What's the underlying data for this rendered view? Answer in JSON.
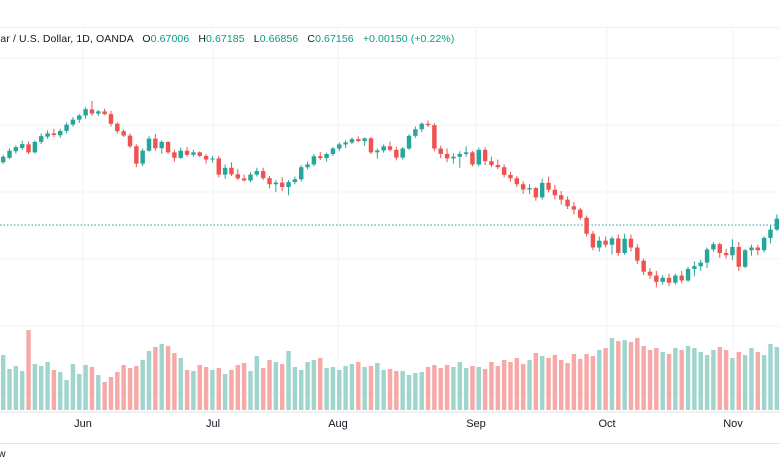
{
  "legend": {
    "symbol": "lar / U.S. Dollar, 1D, OANDA",
    "open_label": "O",
    "open": "0.67006",
    "high_label": "H",
    "high": "0.67185",
    "low_label": "L",
    "low": "0.66856",
    "close_label": "C",
    "close": "0.67156",
    "change": "+0.00150 (+0.22%)"
  },
  "footer": {
    "label": "w"
  },
  "colors": {
    "up": "#26a69a",
    "down": "#ef5350",
    "up_volume": "#9fd5cd",
    "down_volume": "#f7a9a7",
    "grid": "#f0f3fa",
    "price_line": "#26a69a"
  },
  "chart_data": {
    "type": "candlestick",
    "x_tick_labels": [
      "Jun",
      "Jul",
      "Aug",
      "Sep",
      "Oct",
      "Nov"
    ],
    "grid": true,
    "last_price_line": true,
    "candles_ohlc_scaled": [
      [
        0.61,
        0.637,
        0.604,
        0.63
      ],
      [
        0.626,
        0.66,
        0.622,
        0.652
      ],
      [
        0.65,
        0.672,
        0.641,
        0.665
      ],
      [
        0.662,
        0.688,
        0.655,
        0.676
      ],
      [
        0.675,
        0.686,
        0.64,
        0.646
      ],
      [
        0.646,
        0.69,
        0.641,
        0.684
      ],
      [
        0.684,
        0.715,
        0.676,
        0.705
      ],
      [
        0.703,
        0.726,
        0.695,
        0.715
      ],
      [
        0.715,
        0.732,
        0.702,
        0.709
      ],
      [
        0.708,
        0.731,
        0.698,
        0.724
      ],
      [
        0.724,
        0.755,
        0.715,
        0.747
      ],
      [
        0.747,
        0.774,
        0.74,
        0.765
      ],
      [
        0.765,
        0.785,
        0.753,
        0.78
      ],
      [
        0.78,
        0.81,
        0.768,
        0.803
      ],
      [
        0.802,
        0.833,
        0.778,
        0.787
      ],
      [
        0.787,
        0.8,
        0.778,
        0.795
      ],
      [
        0.795,
        0.805,
        0.781,
        0.785
      ],
      [
        0.785,
        0.797,
        0.74,
        0.75
      ],
      [
        0.75,
        0.756,
        0.715,
        0.723
      ],
      [
        0.723,
        0.73,
        0.702,
        0.707
      ],
      [
        0.707,
        0.715,
        0.662,
        0.668
      ],
      [
        0.668,
        0.675,
        0.592,
        0.605
      ],
      [
        0.605,
        0.66,
        0.596,
        0.652
      ],
      [
        0.652,
        0.705,
        0.648,
        0.696
      ],
      [
        0.696,
        0.713,
        0.652,
        0.661
      ],
      [
        0.661,
        0.69,
        0.641,
        0.684
      ],
      [
        0.684,
        0.686,
        0.64,
        0.646
      ],
      [
        0.646,
        0.656,
        0.612,
        0.626
      ],
      [
        0.626,
        0.663,
        0.622,
        0.652
      ],
      [
        0.652,
        0.665,
        0.63,
        0.637
      ],
      [
        0.637,
        0.655,
        0.63,
        0.646
      ],
      [
        0.646,
        0.65,
        0.628,
        0.633
      ],
      [
        0.633,
        0.64,
        0.605,
        0.62
      ],
      [
        0.62,
        0.633,
        0.608,
        0.624
      ],
      [
        0.624,
        0.632,
        0.555,
        0.565
      ],
      [
        0.565,
        0.602,
        0.55,
        0.59
      ],
      [
        0.59,
        0.61,
        0.56,
        0.566
      ],
      [
        0.566,
        0.585,
        0.545,
        0.551
      ],
      [
        0.551,
        0.565,
        0.54,
        0.544
      ],
      [
        0.544,
        0.573,
        0.538,
        0.565
      ],
      [
        0.565,
        0.59,
        0.558,
        0.578
      ],
      [
        0.578,
        0.59,
        0.545,
        0.552
      ],
      [
        0.552,
        0.56,
        0.515,
        0.53
      ],
      [
        0.53,
        0.545,
        0.502,
        0.536
      ],
      [
        0.536,
        0.556,
        0.505,
        0.52
      ],
      [
        0.52,
        0.545,
        0.49,
        0.538
      ],
      [
        0.538,
        0.558,
        0.53,
        0.548
      ],
      [
        0.548,
        0.6,
        0.54,
        0.592
      ],
      [
        0.592,
        0.612,
        0.584,
        0.602
      ],
      [
        0.602,
        0.64,
        0.595,
        0.632
      ],
      [
        0.632,
        0.648,
        0.618,
        0.625
      ],
      [
        0.625,
        0.645,
        0.612,
        0.64
      ],
      [
        0.64,
        0.665,
        0.633,
        0.66
      ],
      [
        0.66,
        0.682,
        0.65,
        0.675
      ],
      [
        0.675,
        0.69,
        0.662,
        0.682
      ],
      [
        0.682,
        0.7,
        0.676,
        0.694
      ],
      [
        0.694,
        0.704,
        0.684,
        0.687
      ],
      [
        0.687,
        0.7,
        0.67,
        0.697
      ],
      [
        0.697,
        0.702,
        0.64,
        0.646
      ],
      [
        0.646,
        0.66,
        0.623,
        0.653
      ],
      [
        0.653,
        0.675,
        0.645,
        0.668
      ],
      [
        0.668,
        0.685,
        0.65,
        0.655
      ],
      [
        0.655,
        0.666,
        0.617,
        0.627
      ],
      [
        0.627,
        0.665,
        0.62,
        0.66
      ],
      [
        0.66,
        0.712,
        0.655,
        0.706
      ],
      [
        0.706,
        0.74,
        0.698,
        0.73
      ],
      [
        0.73,
        0.755,
        0.72,
        0.75
      ],
      [
        0.75,
        0.762,
        0.738,
        0.745
      ],
      [
        0.745,
        0.752,
        0.65,
        0.66
      ],
      [
        0.66,
        0.67,
        0.625,
        0.64
      ],
      [
        0.64,
        0.66,
        0.61,
        0.624
      ],
      [
        0.624,
        0.643,
        0.605,
        0.63
      ],
      [
        0.63,
        0.65,
        0.59,
        0.64
      ],
      [
        0.64,
        0.668,
        0.63,
        0.646
      ],
      [
        0.646,
        0.651,
        0.595,
        0.602
      ],
      [
        0.602,
        0.663,
        0.595,
        0.655
      ],
      [
        0.655,
        0.665,
        0.6,
        0.614
      ],
      [
        0.614,
        0.63,
        0.592,
        0.6
      ],
      [
        0.6,
        0.62,
        0.585,
        0.592
      ],
      [
        0.592,
        0.602,
        0.555,
        0.564
      ],
      [
        0.564,
        0.575,
        0.54,
        0.552
      ],
      [
        0.552,
        0.56,
        0.52,
        0.53
      ],
      [
        0.53,
        0.54,
        0.495,
        0.511
      ],
      [
        0.511,
        0.53,
        0.495,
        0.516
      ],
      [
        0.516,
        0.52,
        0.47,
        0.482
      ],
      [
        0.482,
        0.55,
        0.474,
        0.535
      ],
      [
        0.535,
        0.558,
        0.5,
        0.51
      ],
      [
        0.51,
        0.528,
        0.475,
        0.49
      ],
      [
        0.49,
        0.505,
        0.456,
        0.474
      ],
      [
        0.474,
        0.485,
        0.44,
        0.45
      ],
      [
        0.45,
        0.465,
        0.42,
        0.438
      ],
      [
        0.438,
        0.445,
        0.4,
        0.408
      ],
      [
        0.408,
        0.416,
        0.34,
        0.35
      ],
      [
        0.35,
        0.36,
        0.29,
        0.3
      ],
      [
        0.3,
        0.34,
        0.285,
        0.325
      ],
      [
        0.325,
        0.34,
        0.3,
        0.31
      ],
      [
        0.31,
        0.34,
        0.275,
        0.333
      ],
      [
        0.333,
        0.347,
        0.27,
        0.28
      ],
      [
        0.28,
        0.35,
        0.273,
        0.332
      ],
      [
        0.332,
        0.347,
        0.285,
        0.3
      ],
      [
        0.3,
        0.312,
        0.24,
        0.252
      ],
      [
        0.252,
        0.26,
        0.2,
        0.212
      ],
      [
        0.212,
        0.225,
        0.185,
        0.198
      ],
      [
        0.198,
        0.215,
        0.155,
        0.175
      ],
      [
        0.175,
        0.2,
        0.165,
        0.19
      ],
      [
        0.19,
        0.205,
        0.16,
        0.172
      ],
      [
        0.172,
        0.205,
        0.165,
        0.198
      ],
      [
        0.198,
        0.215,
        0.17,
        0.18
      ],
      [
        0.18,
        0.23,
        0.175,
        0.222
      ],
      [
        0.222,
        0.25,
        0.195,
        0.232
      ],
      [
        0.232,
        0.255,
        0.215,
        0.245
      ],
      [
        0.245,
        0.3,
        0.225,
        0.293
      ],
      [
        0.293,
        0.32,
        0.285,
        0.312
      ],
      [
        0.312,
        0.318,
        0.262,
        0.28
      ],
      [
        0.28,
        0.295,
        0.26,
        0.272
      ],
      [
        0.272,
        0.33,
        0.255,
        0.302
      ],
      [
        0.302,
        0.32,
        0.215,
        0.23
      ],
      [
        0.23,
        0.295,
        0.225,
        0.29
      ],
      [
        0.29,
        0.31,
        0.27,
        0.3
      ],
      [
        0.3,
        0.31,
        0.272,
        0.29
      ],
      [
        0.29,
        0.34,
        0.282,
        0.335
      ],
      [
        0.335,
        0.38,
        0.315,
        0.365
      ],
      [
        0.365,
        0.42,
        0.36,
        0.405
      ]
    ],
    "volume_scaled": [
      0.55,
      0.41,
      0.44,
      0.39,
      0.8,
      0.46,
      0.44,
      0.48,
      0.4,
      0.38,
      0.3,
      0.46,
      0.36,
      0.45,
      0.43,
      0.35,
      0.28,
      0.33,
      0.38,
      0.45,
      0.42,
      0.44,
      0.5,
      0.59,
      0.63,
      0.66,
      0.64,
      0.57,
      0.52,
      0.4,
      0.39,
      0.45,
      0.43,
      0.4,
      0.42,
      0.36,
      0.4,
      0.45,
      0.47,
      0.39,
      0.54,
      0.42,
      0.5,
      0.48,
      0.46,
      0.59,
      0.43,
      0.4,
      0.48,
      0.5,
      0.52,
      0.42,
      0.43,
      0.4,
      0.44,
      0.46,
      0.48,
      0.43,
      0.44,
      0.47,
      0.4,
      0.41,
      0.39,
      0.39,
      0.35,
      0.37,
      0.38,
      0.43,
      0.45,
      0.42,
      0.45,
      0.43,
      0.48,
      0.42,
      0.44,
      0.43,
      0.41,
      0.48,
      0.44,
      0.5,
      0.48,
      0.52,
      0.46,
      0.5,
      0.57,
      0.54,
      0.52,
      0.55,
      0.5,
      0.47,
      0.56,
      0.51,
      0.56,
      0.54,
      0.6,
      0.62,
      0.72,
      0.69,
      0.7,
      0.68,
      0.72,
      0.64,
      0.6,
      0.62,
      0.58,
      0.56,
      0.62,
      0.6,
      0.64,
      0.62,
      0.58,
      0.55,
      0.6,
      0.63,
      0.6,
      0.52,
      0.58,
      0.55,
      0.62,
      0.58,
      0.55,
      0.66,
      0.63,
      0.64
    ]
  }
}
